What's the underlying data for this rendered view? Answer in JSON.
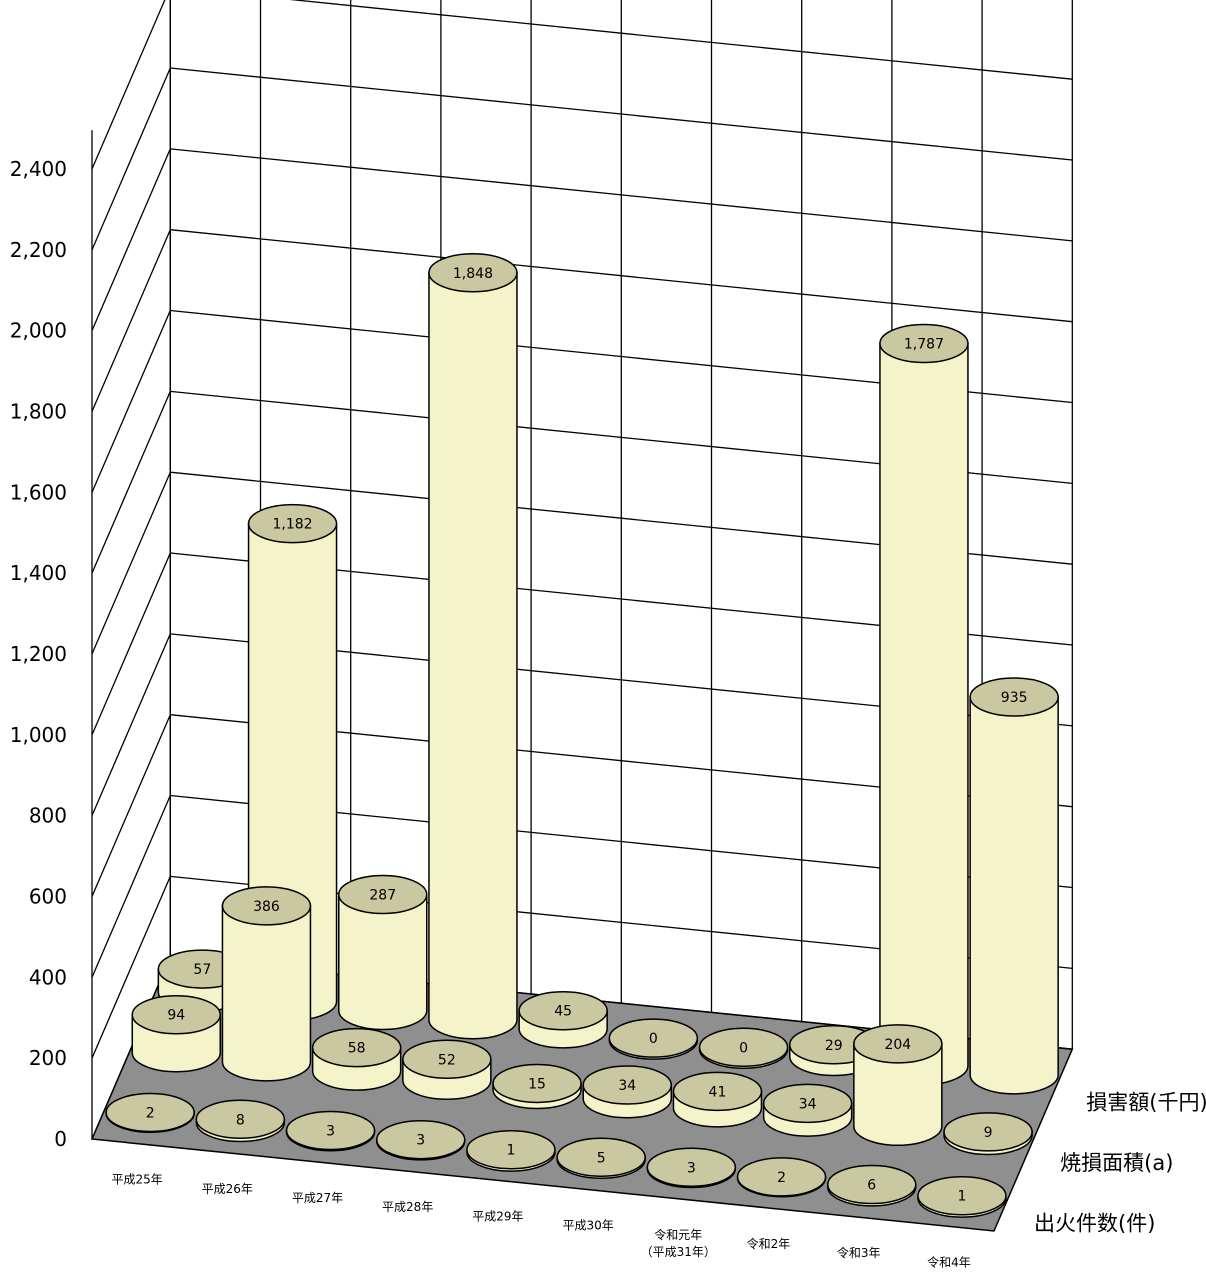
{
  "chart_data": {
    "type": "bar",
    "style": "3d-cylinder",
    "categories": [
      "平成25年",
      "平成26年",
      "平成27年",
      "平成28年",
      "平成29年",
      "平成30年",
      [
        "令和元年",
        "（平成31年）"
      ],
      "令和2年",
      "令和3年",
      "令和4年"
    ],
    "series": [
      {
        "name": "出火件数(件)",
        "values": [
          2,
          8,
          3,
          3,
          1,
          5,
          3,
          2,
          6,
          1
        ]
      },
      {
        "name": "焼損面積(a)",
        "values": [
          94,
          386,
          58,
          52,
          15,
          34,
          41,
          34,
          204,
          9
        ]
      },
      {
        "name": "損害額(千円)",
        "values": [
          57,
          1182,
          287,
          1848,
          45,
          0,
          0,
          29,
          1787,
          935
        ]
      }
    ],
    "yticks": [
      "0",
      "200",
      "400",
      "600",
      "800",
      "1,000",
      "1,200",
      "1,400",
      "1,600",
      "1,800",
      "2,000",
      "2,200",
      "2,400"
    ],
    "ylim": [
      0,
      2400
    ],
    "grid": true,
    "legend": "right",
    "colors": {
      "cylinder_side": "#f4f3c9",
      "cylinder_top": "#c9c8a0",
      "floor": "#8f8f8f"
    }
  }
}
